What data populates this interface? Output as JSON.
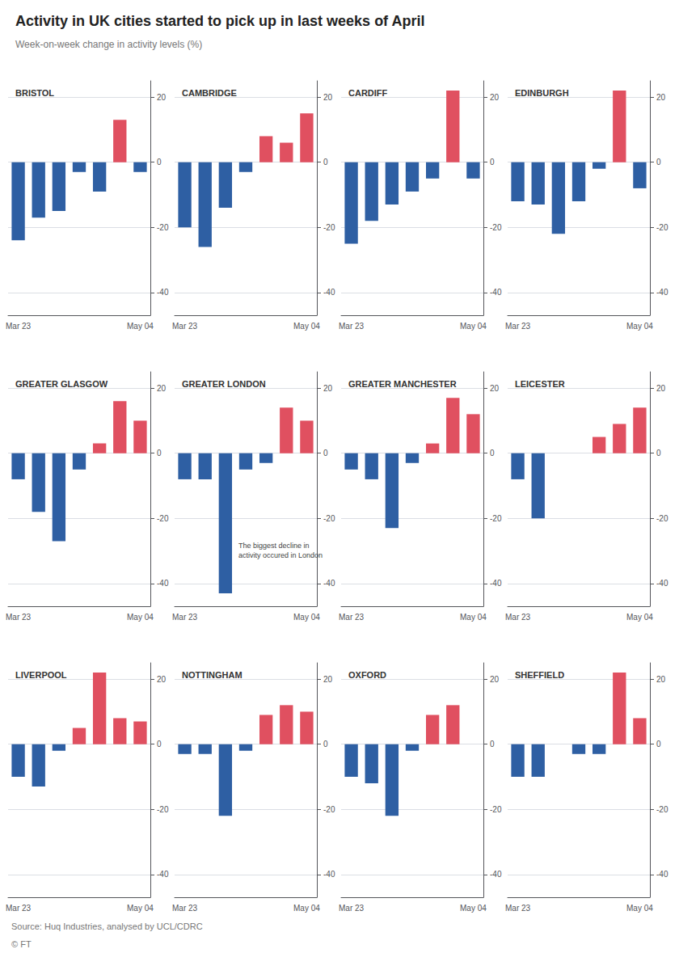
{
  "title": "Activity in UK cities started to pick up in last weeks of April",
  "subtitle": "Week-on-week change in activity levels (%)",
  "annotations": [
    "Source: Huq Industries, analysed by UCL/CDRC",
    "© FT"
  ],
  "chart_data": [
    {
      "type": "bar",
      "title": "BRISTOL",
      "categories": [
        "Mar 23",
        null,
        null,
        null,
        null,
        null,
        "May 04"
      ],
      "values": [
        -24,
        -17,
        -15,
        -3,
        -9,
        13,
        -3
      ],
      "colors": [
        "#2e5fa3",
        "#2e5fa3",
        "#2e5fa3",
        "#2e5fa3",
        "#2e5fa3",
        "#e05060",
        "#2e5fa3"
      ],
      "ylim": [
        -47,
        25
      ],
      "yticks": [
        20,
        0,
        -20,
        -40
      ],
      "grid": true
    },
    {
      "type": "bar",
      "title": "CAMBRIDGE",
      "categories": [
        "Mar 23",
        null,
        null,
        null,
        null,
        null,
        "May 04"
      ],
      "values": [
        -20,
        -26,
        -14,
        -3,
        8,
        6,
        15
      ],
      "colors": [
        "#2e5fa3",
        "#2e5fa3",
        "#2e5fa3",
        "#2e5fa3",
        "#e05060",
        "#e05060",
        "#e05060"
      ],
      "ylim": [
        -47,
        25
      ],
      "yticks": [
        20,
        0,
        -20,
        -40
      ],
      "grid": true
    },
    {
      "type": "bar",
      "title": "CARDIFF",
      "categories": [
        "Mar 23",
        null,
        null,
        null,
        null,
        null,
        "May 04"
      ],
      "values": [
        -25,
        -18,
        -13,
        -9,
        -5,
        22,
        -5
      ],
      "colors": [
        "#2e5fa3",
        "#2e5fa3",
        "#2e5fa3",
        "#2e5fa3",
        "#2e5fa3",
        "#e05060",
        "#2e5fa3"
      ],
      "ylim": [
        -47,
        25
      ],
      "yticks": [
        20,
        0,
        -20,
        -40
      ],
      "grid": true
    },
    {
      "type": "bar",
      "title": "EDINBURGH",
      "categories": [
        "Mar 23",
        null,
        null,
        null,
        null,
        null,
        "May 04"
      ],
      "values": [
        -12,
        -13,
        -22,
        -12,
        -2,
        22,
        -8
      ],
      "colors": [
        "#2e5fa3",
        "#2e5fa3",
        "#2e5fa3",
        "#2e5fa3",
        "#2e5fa3",
        "#e05060",
        "#2e5fa3"
      ],
      "ylim": [
        -47,
        25
      ],
      "yticks": [
        20,
        0,
        -20,
        -40
      ],
      "grid": true
    },
    {
      "type": "bar",
      "title": "GREATER GLASGOW",
      "categories": [
        "Mar 23",
        null,
        null,
        null,
        null,
        null,
        "May 04"
      ],
      "values": [
        -8,
        -18,
        -27,
        -5,
        3,
        16,
        10
      ],
      "colors": [
        "#2e5fa3",
        "#2e5fa3",
        "#2e5fa3",
        "#2e5fa3",
        "#e05060",
        "#e05060",
        "#e05060"
      ],
      "ylim": [
        -47,
        25
      ],
      "yticks": [
        20,
        0,
        -20,
        -40
      ],
      "grid": true
    },
    {
      "type": "bar",
      "title": "GREATER LONDON",
      "categories": [
        "Mar 23",
        null,
        null,
        null,
        null,
        null,
        "May 04"
      ],
      "values": [
        -8,
        -8,
        -43,
        -5,
        -3,
        14,
        10
      ],
      "colors": [
        "#2e5fa3",
        "#2e5fa3",
        "#2e5fa3",
        "#2e5fa3",
        "#2e5fa3",
        "#e05060",
        "#e05060"
      ],
      "ylim": [
        -47,
        25
      ],
      "yticks": [
        20,
        0,
        -20,
        -40
      ],
      "grid": true,
      "annotations": [
        "The biggest decline in\nactivity occured in London"
      ]
    },
    {
      "type": "bar",
      "title": "GREATER MANCHESTER",
      "categories": [
        "Mar 23",
        null,
        null,
        null,
        null,
        null,
        "May 04"
      ],
      "values": [
        -5,
        -8,
        -23,
        -3,
        3,
        17,
        12
      ],
      "colors": [
        "#2e5fa3",
        "#2e5fa3",
        "#2e5fa3",
        "#2e5fa3",
        "#e05060",
        "#e05060",
        "#e05060"
      ],
      "ylim": [
        -47,
        25
      ],
      "yticks": [
        20,
        0,
        -20,
        -40
      ],
      "grid": true
    },
    {
      "type": "bar",
      "title": "LEICESTER",
      "categories": [
        "Mar 23",
        null,
        null,
        null,
        null,
        null,
        "May 04"
      ],
      "values": [
        -8,
        -20,
        0,
        0,
        5,
        9,
        14
      ],
      "colors": [
        "#2e5fa3",
        "#2e5fa3",
        "#e05060",
        "#e05060",
        "#e05060",
        "#e05060",
        "#e05060"
      ],
      "ylim": [
        -47,
        25
      ],
      "yticks": [
        20,
        0,
        -20,
        -40
      ],
      "grid": true
    },
    {
      "type": "bar",
      "title": "LIVERPOOL",
      "categories": [
        "Mar 23",
        null,
        null,
        null,
        null,
        null,
        "May 04"
      ],
      "values": [
        -10,
        -13,
        -2,
        5,
        22,
        8,
        7
      ],
      "colors": [
        "#2e5fa3",
        "#2e5fa3",
        "#2e5fa3",
        "#e05060",
        "#e05060",
        "#e05060",
        "#e05060"
      ],
      "ylim": [
        -47,
        25
      ],
      "yticks": [
        20,
        0,
        -20,
        -40
      ],
      "grid": true
    },
    {
      "type": "bar",
      "title": "NOTTINGHAM",
      "categories": [
        "Mar 23",
        null,
        null,
        null,
        null,
        null,
        "May 04"
      ],
      "values": [
        -3,
        -3,
        -22,
        -2,
        9,
        12,
        10
      ],
      "colors": [
        "#2e5fa3",
        "#2e5fa3",
        "#2e5fa3",
        "#2e5fa3",
        "#e05060",
        "#e05060",
        "#e05060"
      ],
      "ylim": [
        -47,
        25
      ],
      "yticks": [
        20,
        0,
        -20,
        -40
      ],
      "grid": true
    },
    {
      "type": "bar",
      "title": "OXFORD",
      "categories": [
        "Mar 23",
        null,
        null,
        null,
        null,
        null,
        "May 04"
      ],
      "values": [
        -10,
        -12,
        -22,
        -2,
        9,
        12,
        0
      ],
      "colors": [
        "#2e5fa3",
        "#2e5fa3",
        "#2e5fa3",
        "#2e5fa3",
        "#e05060",
        "#e05060",
        "#e05060"
      ],
      "ylim": [
        -47,
        25
      ],
      "yticks": [
        20,
        0,
        -20,
        -40
      ],
      "grid": true
    },
    {
      "type": "bar",
      "title": "SHEFFIELD",
      "categories": [
        "Mar 23",
        null,
        null,
        null,
        null,
        null,
        "May 04"
      ],
      "values": [
        -10,
        -10,
        0,
        -3,
        -3,
        22,
        8
      ],
      "colors": [
        "#2e5fa3",
        "#2e5fa3",
        "#e05060",
        "#2e5fa3",
        "#2e5fa3",
        "#e05060",
        "#e05060"
      ],
      "ylim": [
        -47,
        25
      ],
      "yticks": [
        20,
        0,
        -20,
        -40
      ],
      "grid": true
    }
  ]
}
